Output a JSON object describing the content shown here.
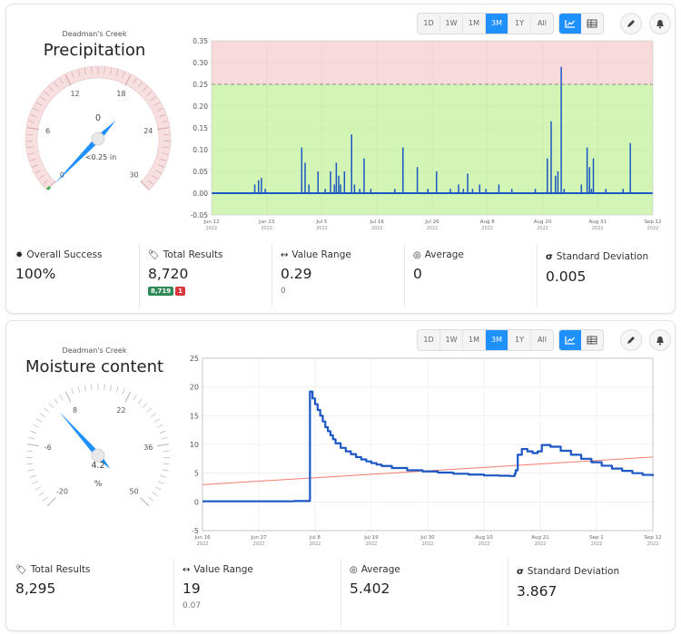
{
  "toolbar": {
    "ranges": [
      "1D",
      "1W",
      "1M",
      "3M",
      "1Y",
      "All"
    ],
    "active_range": "3M",
    "active_view": "chart-view",
    "icons": [
      "line-chart-icon",
      "table-icon",
      "pencil-icon",
      "bell-icon"
    ]
  },
  "colors": {
    "accent": "#1e90ff",
    "series": "#1a56c4",
    "warning_zone": "#f8dada",
    "ok_zone": "#d2f5b6",
    "trend": "#f47a6e",
    "success_badge": "#2e8b57",
    "error_badge": "#d9363e"
  },
  "panels": [
    {
      "site": "Deadman's Creek",
      "metric": "Precipitation",
      "gauge": {
        "ticks": [
          "0",
          "6",
          "12",
          "18",
          "24",
          "30"
        ],
        "value": "0",
        "readout": "<0.25 in",
        "min": 0,
        "max": 30,
        "current": 0.0
      },
      "stats": {
        "overall_success": {
          "label": "Overall Success",
          "value": "100%"
        },
        "total_results": {
          "label": "Total Results",
          "value": "8,720",
          "ok": "8,719",
          "err": "1"
        },
        "value_range": {
          "label": "Value Range",
          "value": "0.29",
          "sub": "0"
        },
        "average": {
          "label": "Average",
          "value": "0"
        },
        "std_dev": {
          "label": "Standard Deviation",
          "value": "0.005"
        }
      }
    },
    {
      "site": "Deadman's Creek",
      "metric": "Moisture content",
      "gauge": {
        "ticks": [
          "-20",
          "-6",
          "8",
          "22",
          "36",
          "50"
        ],
        "value": "4.2",
        "unit": "%",
        "min": -20,
        "max": 50,
        "current": 4.2
      },
      "stats": {
        "total_results": {
          "label": "Total Results",
          "value": "8,295"
        },
        "value_range": {
          "label": "Value Range",
          "value": "19",
          "sub": "0.07"
        },
        "average": {
          "label": "Average",
          "value": "5.402"
        },
        "std_dev": {
          "label": "Standard Deviation",
          "value": "3.867"
        }
      }
    }
  ],
  "chart_data": [
    {
      "type": "bar",
      "x_ticks": [
        "Jun 12|2022",
        "Jun 23|2022",
        "Jul 5|2022",
        "Jul 16|2022",
        "Jul 26|2022",
        "Aug 8|2022",
        "Aug 20|2022",
        "Aug 31|2022",
        "Sep 12|2022"
      ],
      "y_ticks": [
        "0.35",
        "0.30",
        "0.25",
        "0.20",
        "0.15",
        "0.10",
        "0.05",
        "0.00",
        "-0.05"
      ],
      "ylim": [
        -0.05,
        0.35
      ],
      "x_range_days": [
        0,
        92
      ],
      "threshold": 0.25,
      "zones": [
        {
          "from": 0.0,
          "to": 0.25,
          "name": "ok"
        },
        {
          "from": 0.25,
          "to": 0.35,
          "name": "warning"
        }
      ],
      "spikes": [
        [
          9,
          0.02
        ],
        [
          9.8,
          0.03
        ],
        [
          10.4,
          0.035
        ],
        [
          11.2,
          0.01
        ],
        [
          18.8,
          0.105
        ],
        [
          19.5,
          0.07
        ],
        [
          20.3,
          0.02
        ],
        [
          22.2,
          0.05
        ],
        [
          23.7,
          0.01
        ],
        [
          24.8,
          0.05
        ],
        [
          25.6,
          0.02
        ],
        [
          26,
          0.07
        ],
        [
          26.5,
          0.04
        ],
        [
          26.9,
          0.02
        ],
        [
          27.7,
          0.05
        ],
        [
          29.2,
          0.135
        ],
        [
          29.8,
          0.02
        ],
        [
          30.9,
          0.01
        ],
        [
          31.8,
          0.08
        ],
        [
          33.2,
          0.01
        ],
        [
          38.2,
          0.01
        ],
        [
          39.9,
          0.105
        ],
        [
          42.9,
          0.06
        ],
        [
          45.1,
          0.01
        ],
        [
          46.9,
          0.05
        ],
        [
          49.8,
          0.01
        ],
        [
          51.5,
          0.02
        ],
        [
          52.5,
          0.01
        ],
        [
          53.4,
          0.045
        ],
        [
          54.4,
          0.01
        ],
        [
          55.9,
          0.02
        ],
        [
          57.2,
          0.01
        ],
        [
          59.9,
          0.02
        ],
        [
          62.6,
          0.01
        ],
        [
          67.5,
          0.01
        ],
        [
          70,
          0.08
        ],
        [
          70.8,
          0.165
        ],
        [
          71.7,
          0.04
        ],
        [
          72.2,
          0.05
        ],
        [
          72.9,
          0.29
        ],
        [
          73.5,
          0.01
        ],
        [
          77.1,
          0.02
        ],
        [
          78.3,
          0.105
        ],
        [
          78.8,
          0.06
        ],
        [
          79.2,
          0.01
        ],
        [
          79.6,
          0.08
        ],
        [
          82.2,
          0.01
        ],
        [
          85.8,
          0.01
        ],
        [
          87.3,
          0.115
        ]
      ]
    },
    {
      "type": "line",
      "x_ticks": [
        "Jun 16|2022",
        "Jun 27|2022",
        "Jul 8|2022",
        "Jul 19|2022",
        "Jul 30|2022",
        "Aug 10|2022",
        "Aug 21|2022",
        "Sep 1|2022",
        "Sep 12|2022"
      ],
      "y_ticks": [
        "25",
        "20",
        "15",
        "10",
        "5",
        "0",
        "-5"
      ],
      "ylim": [
        -5,
        25
      ],
      "x_range_days": [
        0,
        88
      ],
      "series": [
        {
          "type": "line",
          "color": "#1a56c4",
          "points": [
            [
              0,
              0.1
            ],
            [
              10,
              0.1
            ],
            [
              18,
              0.15
            ],
            [
              20.9,
              0.2
            ],
            [
              21,
              19.2
            ],
            [
              21.5,
              18
            ],
            [
              22,
              17
            ],
            [
              22.5,
              16
            ],
            [
              23,
              15
            ],
            [
              23.5,
              14
            ],
            [
              24,
              13
            ],
            [
              24.5,
              12.3
            ],
            [
              25,
              11.6
            ],
            [
              25.5,
              10.9
            ],
            [
              26,
              10.2
            ],
            [
              27,
              9.4
            ],
            [
              28,
              8.8
            ],
            [
              29,
              8.3
            ],
            [
              30,
              7.8
            ],
            [
              31,
              7.4
            ],
            [
              32,
              7.05
            ],
            [
              33,
              6.75
            ],
            [
              34,
              6.5
            ],
            [
              35,
              6.25
            ],
            [
              37,
              5.9
            ],
            [
              40,
              5.5
            ],
            [
              43,
              5.3
            ],
            [
              46,
              5.1
            ],
            [
              49,
              4.9
            ],
            [
              52,
              4.75
            ],
            [
              55,
              4.6
            ],
            [
              58,
              4.55
            ],
            [
              60,
              4.5
            ],
            [
              61,
              4.9
            ],
            [
              61.2,
              5.5
            ],
            [
              61.6,
              8.2
            ],
            [
              62.4,
              9.2
            ],
            [
              63.5,
              8.8
            ],
            [
              64.5,
              8.5
            ],
            [
              65.5,
              8.8
            ],
            [
              66.3,
              9.9
            ],
            [
              67,
              9.9
            ],
            [
              68,
              9.6
            ],
            [
              70,
              8.9
            ],
            [
              72,
              8.2
            ],
            [
              74,
              7.5
            ],
            [
              76,
              6.9
            ],
            [
              78,
              6.3
            ],
            [
              80,
              5.8
            ],
            [
              82,
              5.4
            ],
            [
              84,
              5.0
            ],
            [
              86,
              4.7
            ],
            [
              88,
              4.5
            ]
          ]
        },
        {
          "type": "trend",
          "color": "#f47a6e",
          "points": [
            [
              0,
              3.0
            ],
            [
              88,
              7.8
            ]
          ]
        }
      ]
    }
  ]
}
